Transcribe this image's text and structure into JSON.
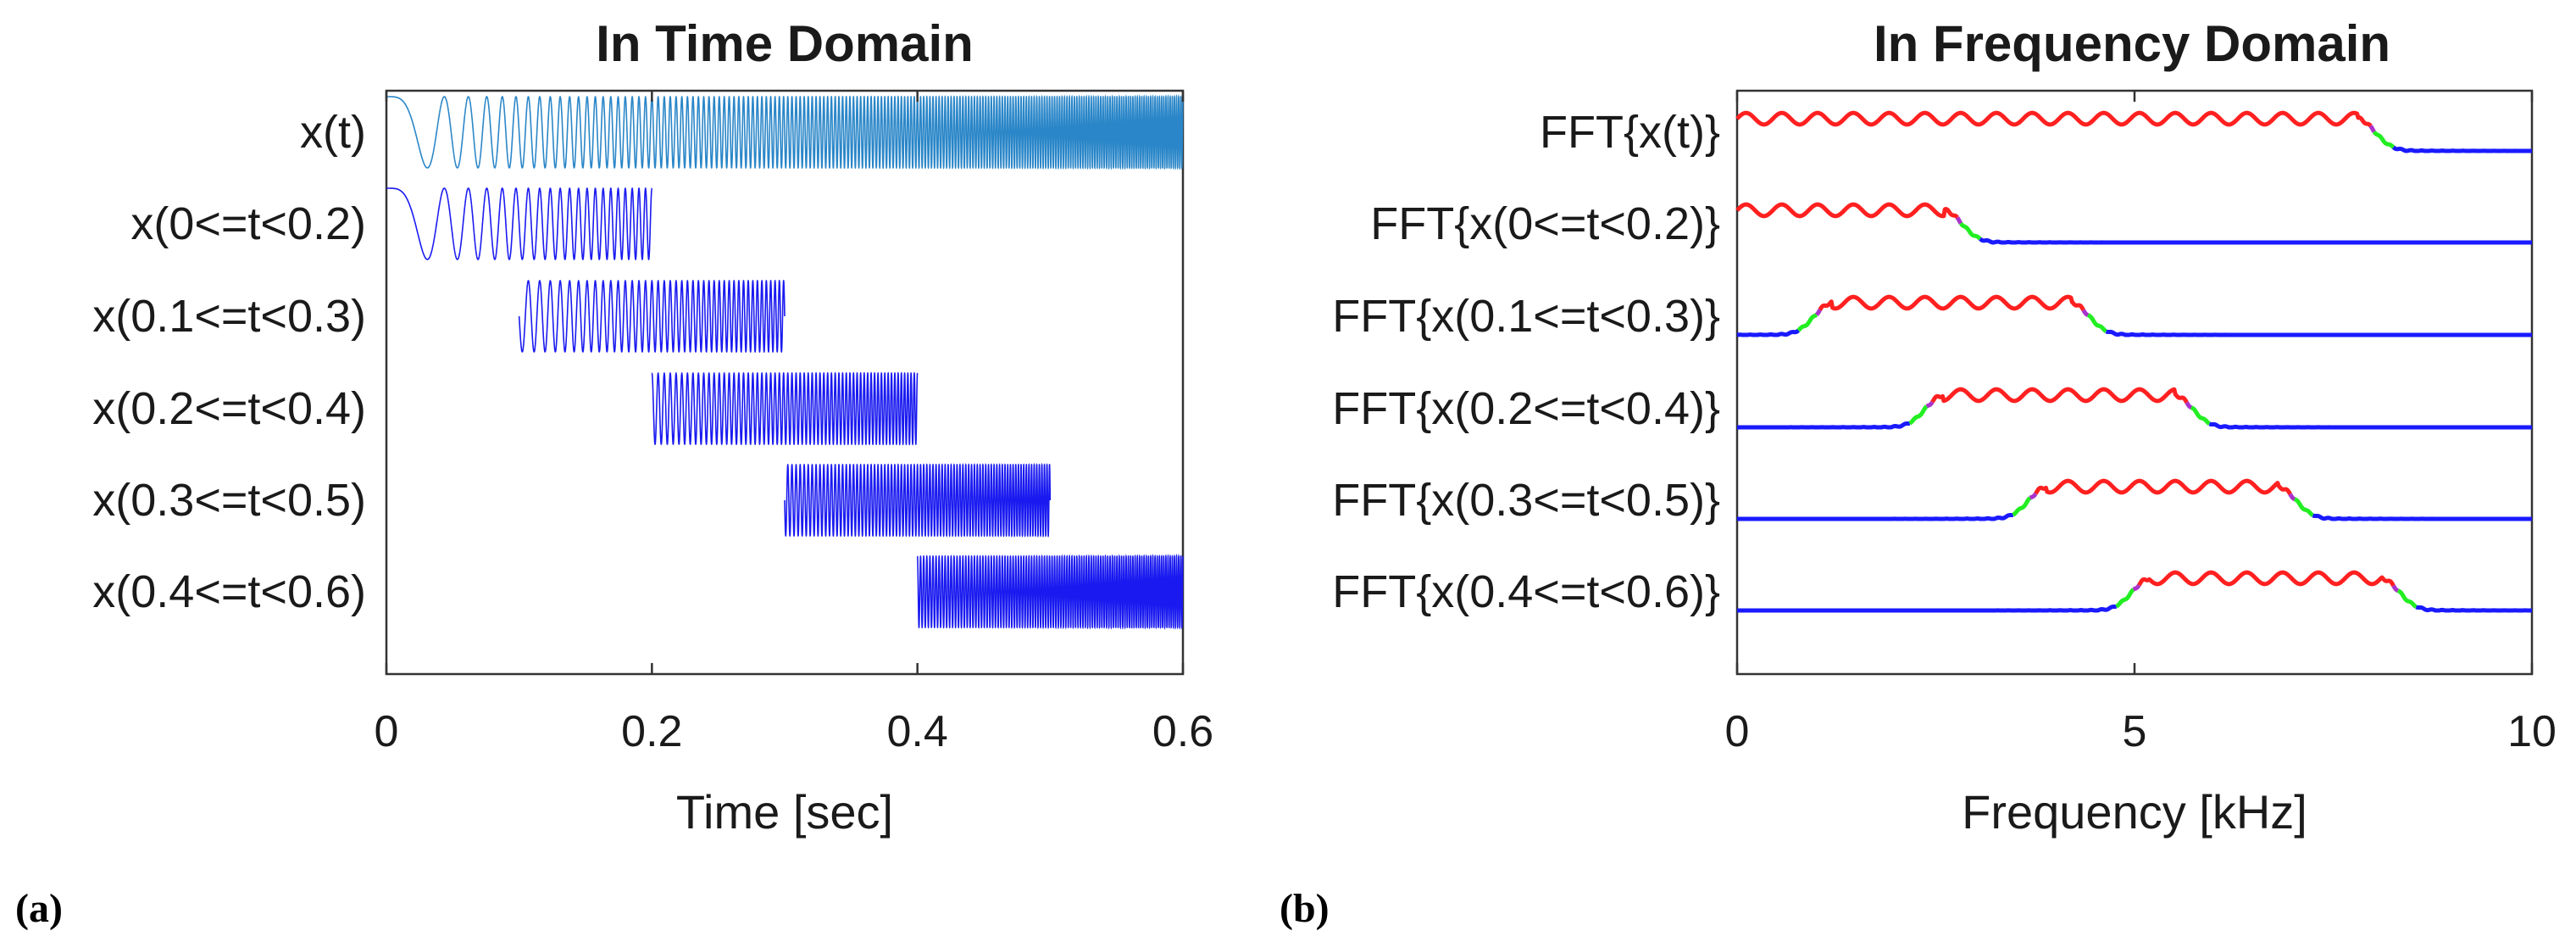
{
  "colors": {
    "time_full": "#2a86c8",
    "time_segments": "#1a1af0",
    "spec_base": "#1a1aff",
    "spec_mid": "#22ee22",
    "spec_high": "#ff2020",
    "spec_transition": "#aa33cc"
  },
  "panels": {
    "a": {
      "caption": "(a)"
    },
    "b": {
      "caption": "(b)"
    }
  },
  "chart_data": [
    {
      "type": "line",
      "title": "In Time Domain",
      "xlabel": "Time [sec]",
      "ylabel": "",
      "xlim": [
        0,
        0.6
      ],
      "xticks": [
        0,
        0.2,
        0.4,
        0.6
      ],
      "xtick_labels": [
        "0",
        "0.2",
        "0.4",
        "0.6"
      ],
      "grid": false,
      "signal": "linear chirp, instantaneous frequency rising from 0 to about 10 kHz over 0.6 s",
      "series": [
        {
          "name": "x(t)",
          "x_range": [
            0,
            0.6
          ]
        },
        {
          "name": "x(0<=t<0.2)",
          "x_range": [
            0,
            0.2
          ]
        },
        {
          "name": "x(0.1<=t<0.3)",
          "x_range": [
            0.1,
            0.3
          ]
        },
        {
          "name": "x(0.2<=t<0.4)",
          "x_range": [
            0.2,
            0.4
          ]
        },
        {
          "name": "x(0.3<=t<0.5)",
          "x_range": [
            0.3,
            0.5
          ]
        },
        {
          "name": "x(0.4<=t<0.6)",
          "x_range": [
            0.4,
            0.6
          ]
        }
      ]
    },
    {
      "type": "line",
      "title": "In Frequency Domain",
      "xlabel": "Frequency [kHz]",
      "ylabel": "",
      "xlim": [
        0,
        10
      ],
      "xticks": [
        0,
        5,
        10
      ],
      "xtick_labels": [
        "0",
        "5",
        "10"
      ],
      "grid": false,
      "series": [
        {
          "name": "FFT{x(t)}",
          "band_khz": [
            0,
            7.8
          ]
        },
        {
          "name": "FFT{x(0<=t<0.2)}",
          "band_khz": [
            0,
            2.6
          ]
        },
        {
          "name": "FFT{x(0.1<=t<0.3)}",
          "band_khz": [
            1.2,
            4.2
          ]
        },
        {
          "name": "FFT{x(0.2<=t<0.4)}",
          "band_khz": [
            2.6,
            5.5
          ]
        },
        {
          "name": "FFT{x(0.3<=t<0.5)}",
          "band_khz": [
            3.9,
            6.8
          ]
        },
        {
          "name": "FFT{x(0.4<=t<0.6)}",
          "band_khz": [
            5.2,
            8.1
          ]
        }
      ]
    }
  ]
}
